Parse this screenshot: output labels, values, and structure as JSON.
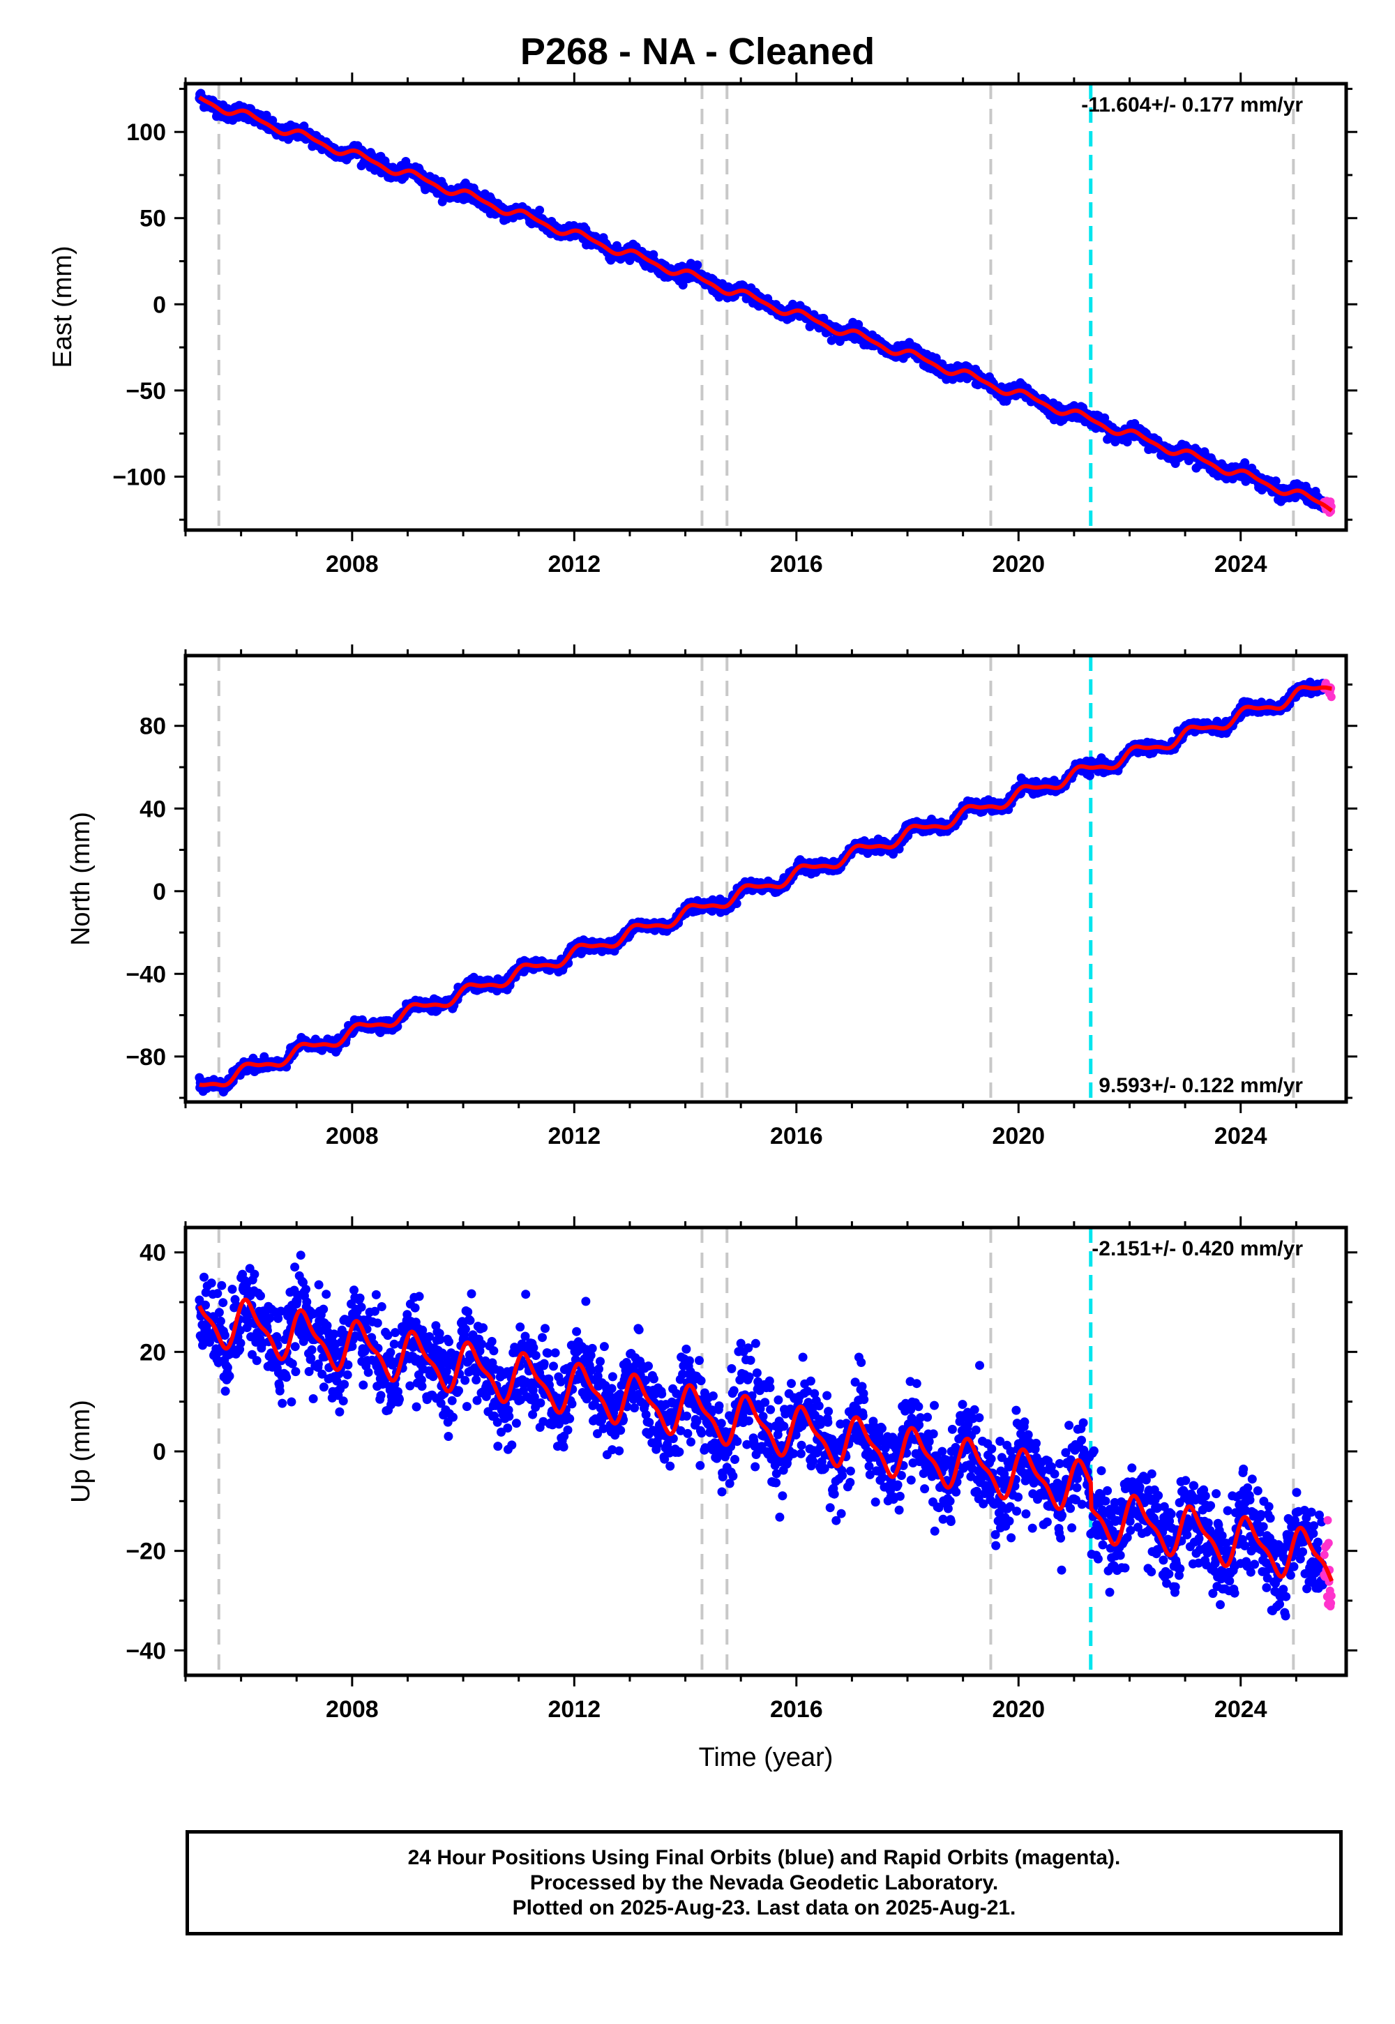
{
  "title": "P268  - NA - Cleaned",
  "footer": {
    "line1": "24 Hour Positions Using Final Orbits (blue) and Rapid Orbits (magenta).",
    "line2": "Processed by the Nevada Geodetic Laboratory.",
    "line3": "Plotted on 2025-Aug-23. Last data on 2025-Aug-21."
  },
  "colors": {
    "final_orbits": "#0000ff",
    "rapid_orbits": "#ff33cc",
    "model_fit": "#ff0000",
    "equipment_change": "#c8c8c8",
    "earthquake": "#00e5ee"
  },
  "chart_data": [
    {
      "type": "scatter",
      "ylabel": "East (mm)",
      "xlabel": "",
      "xlim": [
        2005.0,
        2025.9
      ],
      "ylim": [
        -131,
        128
      ],
      "xticks": [
        2008,
        2012,
        2016,
        2020,
        2024
      ],
      "yticks": [
        100,
        50,
        0,
        -50,
        -100
      ],
      "rate_text": "-11.604+/- 0.177 mm/yr",
      "rate_position": "top-right",
      "start_year": 2005.25,
      "end_year": 2025.64,
      "start_value": 119.0,
      "rate": -11.604,
      "annual_amplitude": 2.3,
      "noise": 2.0,
      "equipment_changes": [
        2005.6,
        2014.3,
        2014.75,
        2019.5,
        2024.95
      ],
      "earthquakes": [
        2021.3
      ],
      "series": [
        {
          "name": "Final Orbits (blue)",
          "x_range": [
            2005.25,
            2025.5
          ]
        },
        {
          "name": "Rapid Orbits (magenta)",
          "x_range": [
            2025.5,
            2025.64
          ]
        }
      ]
    },
    {
      "type": "scatter",
      "ylabel": "North (mm)",
      "xlabel": "",
      "xlim": [
        2005.0,
        2025.9
      ],
      "ylim": [
        -102,
        114
      ],
      "xticks": [
        2008,
        2012,
        2016,
        2020,
        2024
      ],
      "yticks": [
        80,
        40,
        0,
        -40,
        -80
      ],
      "rate_text": "9.593+/- 0.122 mm/yr",
      "rate_position": "bottom-right",
      "start_year": 2005.25,
      "end_year": 2025.64,
      "start_value": -95.0,
      "rate": 9.593,
      "annual_amplitude": 2.8,
      "noise": 1.3,
      "equipment_changes": [
        2005.6,
        2014.3,
        2014.75,
        2019.5,
        2024.95
      ],
      "earthquakes": [
        2021.3
      ],
      "series": [
        {
          "name": "Final Orbits (blue)",
          "x_range": [
            2005.25,
            2025.5
          ]
        },
        {
          "name": "Rapid Orbits (magenta)",
          "x_range": [
            2025.5,
            2025.64
          ]
        }
      ]
    },
    {
      "type": "scatter",
      "ylabel": "Up (mm)",
      "xlabel": "Time (year)",
      "xlim": [
        2005.0,
        2025.9
      ],
      "ylim": [
        -45,
        45
      ],
      "xticks": [
        2008,
        2012,
        2016,
        2020,
        2024
      ],
      "yticks": [
        40,
        20,
        0,
        -20,
        -40
      ],
      "rate_text": "-2.151+/- 0.420 mm/yr",
      "rate_position": "top-right",
      "start_year": 2005.25,
      "end_year": 2025.64,
      "start_value": 27.0,
      "rate": -2.151,
      "annual_amplitude": 4.5,
      "noise": 4.5,
      "offset_at_earthquake": -5.0,
      "equipment_changes": [
        2005.6,
        2014.3,
        2014.75,
        2019.5,
        2024.95
      ],
      "earthquakes": [
        2021.3
      ],
      "series": [
        {
          "name": "Final Orbits (blue)",
          "x_range": [
            2005.25,
            2025.5
          ]
        },
        {
          "name": "Rapid Orbits (magenta)",
          "x_range": [
            2025.5,
            2025.64
          ]
        }
      ]
    }
  ]
}
